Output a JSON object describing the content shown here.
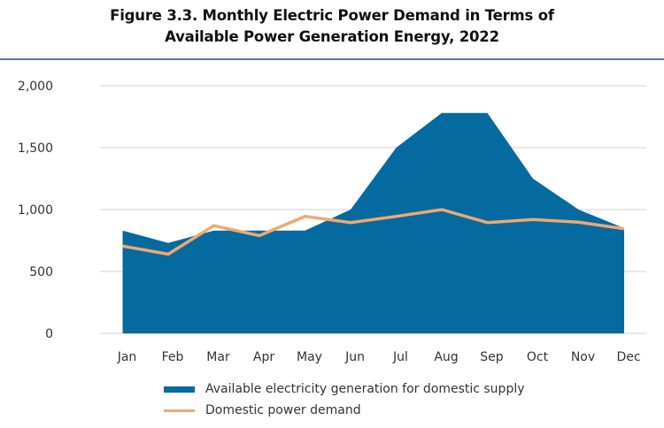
{
  "chart_data": {
    "type": "area",
    "title_line1": "Figure 3.3.  Monthly Electric Power Demand in Terms of",
    "title_line2": "Available Power Generation Energy, 2022",
    "xlabel": "",
    "ylabel": "",
    "categories": [
      "Jan",
      "Feb",
      "Mar",
      "Apr",
      "May",
      "Jun",
      "Jul",
      "Aug",
      "Sep",
      "Oct",
      "Nov",
      "Dec"
    ],
    "ylim": [
      0,
      2000
    ],
    "yticks": [
      0,
      500,
      1000,
      1500,
      2000
    ],
    "ytick_labels": [
      "0",
      "500",
      "1,000",
      "1,500",
      "2,000"
    ],
    "grid": true,
    "legend_position": "bottom",
    "series": [
      {
        "name": "Available electricity generation for domestic supply",
        "kind": "area",
        "color": "#046a9f",
        "values": [
          830,
          730,
          830,
          830,
          830,
          1000,
          1500,
          1780,
          1780,
          1250,
          1000,
          850
        ]
      },
      {
        "name": "Domestic power demand",
        "kind": "line",
        "color": "#f0a872",
        "values": [
          705,
          640,
          870,
          790,
          945,
          895,
          945,
          1000,
          895,
          920,
          898,
          845
        ]
      }
    ]
  },
  "colors": {
    "gridline": "#d9d9d9",
    "divider": "#5b7aa0"
  }
}
